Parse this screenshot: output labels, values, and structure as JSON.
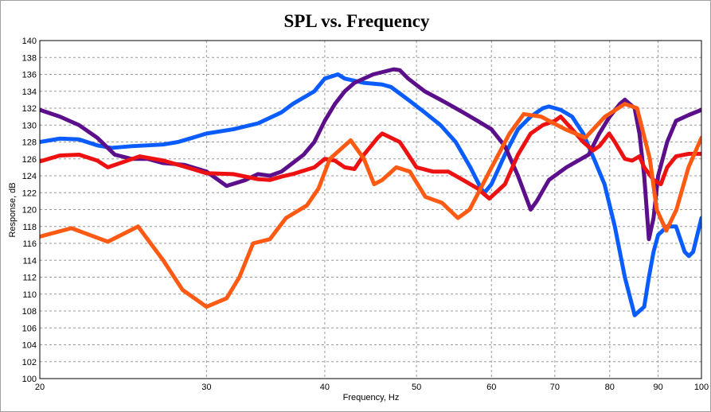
{
  "chart_data": {
    "type": "line",
    "title": "SPL vs. Frequency",
    "x_label": "Frequency, Hz",
    "y_label": "Response, dB",
    "x_scale": "log",
    "grid": true,
    "xlim": [
      20,
      100
    ],
    "xticks": [
      20,
      30,
      40,
      50,
      60,
      70,
      80,
      90,
      100
    ],
    "ylim": [
      100,
      140
    ],
    "yticks": [
      100,
      102,
      104,
      106,
      108,
      110,
      112,
      114,
      116,
      118,
      120,
      122,
      124,
      126,
      128,
      130,
      132,
      134,
      136,
      138,
      140
    ],
    "series": [
      {
        "color": "#0a5cff",
        "x": [
          20,
          21,
          22,
          23,
          23.8,
          25,
          27,
          28,
          29,
          30,
          32,
          34,
          36,
          37,
          39,
          40,
          41.3,
          42,
          44,
          46,
          47,
          49,
          51,
          53,
          55,
          57,
          58.5,
          59,
          60,
          62,
          64,
          66,
          68,
          69,
          71,
          73,
          75,
          77,
          79,
          81,
          83,
          85,
          86,
          87,
          88,
          89,
          90,
          92,
          94,
          96,
          97,
          98,
          100
        ],
        "values": [
          128,
          128.4,
          128.3,
          127.6,
          127.3,
          127.5,
          127.7,
          128,
          128.5,
          129,
          129.5,
          130.2,
          131.5,
          132.5,
          134,
          135.5,
          136,
          135.5,
          135,
          134.8,
          134.5,
          133,
          131.5,
          130,
          128,
          125,
          122.5,
          122,
          123,
          126.5,
          129.5,
          131,
          132,
          132.2,
          131.8,
          131,
          129,
          126,
          123,
          118,
          112,
          107.5,
          108,
          108.5,
          112,
          115,
          117,
          118,
          118,
          115,
          114.5,
          115,
          119
        ]
      },
      {
        "color": "#5c0f8b",
        "x": [
          20,
          21,
          22,
          23,
          24,
          25,
          26,
          27,
          28.4,
          30,
          31.5,
          33,
          34,
          35,
          36,
          37,
          38,
          39,
          40,
          41,
          42,
          43,
          45,
          47.3,
          48,
          49,
          51,
          53,
          54,
          56,
          58,
          60,
          62,
          64,
          66,
          67,
          69,
          72,
          76,
          78,
          80,
          82,
          83,
          85,
          86,
          87,
          88,
          89,
          90,
          92,
          94,
          97,
          100
        ],
        "values": [
          131.8,
          131,
          130,
          128.5,
          126.5,
          126,
          126,
          125.5,
          125.3,
          124.5,
          122.8,
          123.5,
          124.2,
          124,
          124.5,
          125.5,
          126.5,
          128,
          130.5,
          132.5,
          134,
          135,
          136,
          136.6,
          136.5,
          135.5,
          134,
          133,
          132.5,
          131.5,
          130.5,
          129.5,
          127.5,
          124,
          120,
          121,
          123.5,
          125,
          126.5,
          129,
          131,
          132.5,
          133,
          132,
          129,
          124,
          116.5,
          119,
          124,
          128,
          130.5,
          131.2,
          131.8
        ]
      },
      {
        "color": "#ee1111",
        "x": [
          20,
          21,
          22,
          23,
          23.6,
          25.5,
          27,
          28,
          29,
          30,
          32,
          34,
          35,
          36,
          37,
          39,
          40,
          41,
          42,
          43,
          44,
          45.5,
          46,
          48,
          49,
          50,
          52,
          54,
          56,
          58,
          59.7,
          62,
          64,
          66,
          68,
          70,
          71,
          73,
          75,
          76.8,
          78,
          79.9,
          81,
          83,
          84.5,
          86,
          87,
          89,
          90.6,
          92,
          94,
          97,
          100
        ],
        "values": [
          125.7,
          126.4,
          126.5,
          125.8,
          125,
          126.3,
          125.8,
          125.3,
          124.8,
          124.3,
          124.2,
          123.6,
          123.5,
          123.9,
          124.2,
          125,
          126,
          125.8,
          125,
          124.8,
          126.5,
          128.5,
          129,
          128,
          126.5,
          125,
          124.5,
          124.5,
          123.5,
          122.5,
          121.3,
          123,
          126.5,
          129,
          130,
          130.5,
          131,
          129.5,
          128,
          127,
          127.5,
          129,
          128,
          126,
          125.8,
          126.3,
          125,
          123.5,
          123,
          125,
          126.3,
          126.6,
          126.6
        ]
      },
      {
        "color": "#ff5a14",
        "x": [
          20,
          21.6,
          23.6,
          25.4,
          27,
          28.3,
          30,
          31.5,
          32.5,
          33.6,
          35,
          36.4,
          38.3,
          39.4,
          40.5,
          42.6,
          44,
          45.1,
          46,
          47.6,
          49.2,
          51.1,
          53.2,
          55.3,
          56.9,
          59.7,
          62.7,
          64.9,
          67.7,
          71.8,
          75.4,
          79.1,
          83,
          85.5,
          88.2,
          89.7,
          91.8,
          94.1,
          96.9,
          100
        ],
        "values": [
          116.8,
          117.8,
          116.2,
          118,
          114,
          110.5,
          108.5,
          109.5,
          112,
          116,
          116.5,
          119,
          120.5,
          122.5,
          126,
          128.2,
          126,
          123,
          123.5,
          125,
          124.5,
          121.5,
          120.8,
          119,
          120,
          124.5,
          129,
          131.3,
          131,
          129.5,
          128.5,
          131,
          132.5,
          132,
          126,
          120,
          117.5,
          120,
          125,
          128.5
        ]
      }
    ]
  }
}
